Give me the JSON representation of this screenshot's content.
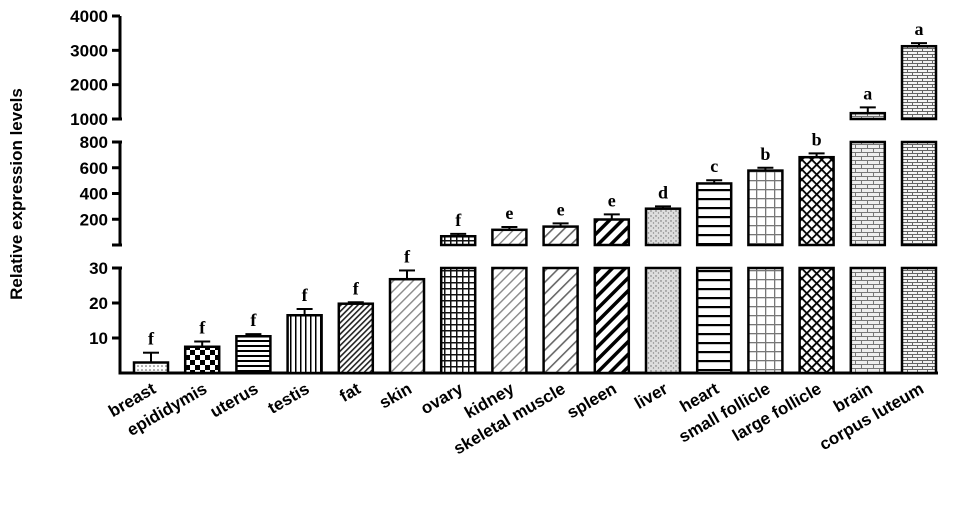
{
  "chart_data": {
    "type": "bar",
    "ylabel": "Relative expression levels",
    "categories": [
      "breast",
      "epididymis",
      "uterus",
      "testis",
      "fat",
      "skin",
      "ovary",
      "kidney",
      "skeletal muscle",
      "spleen",
      "liver",
      "heart",
      "small follicle",
      "large follicle",
      "brain",
      "corpus luteum"
    ],
    "values": [
      3,
      7.5,
      10.5,
      16.5,
      19.8,
      26.8,
      68,
      118,
      143,
      198,
      282,
      478,
      578,
      682,
      1170,
      3120
    ],
    "errors": [
      2.8,
      1.5,
      0.6,
      1.8,
      0.4,
      2.5,
      18,
      22,
      25,
      40,
      18,
      25,
      22,
      30,
      170,
      90
    ],
    "significance": [
      "f",
      "f",
      "f",
      "f",
      "f",
      "f",
      "f",
      "e",
      "e",
      "e",
      "d",
      "c",
      "b",
      "b",
      "a",
      "a"
    ],
    "patterns": [
      "dots",
      "checker",
      "hstripe",
      "vstripe",
      "diag-dense",
      "diag-light",
      "grid",
      "diag-light",
      "diag",
      "diag-bold",
      "speckle",
      "hstripe-wide",
      "grid-light",
      "crosshatch",
      "brick",
      "brick-fine"
    ],
    "y_segments": [
      {
        "range": [
          0,
          30
        ],
        "ticks": [
          "10",
          "20",
          "30"
        ],
        "tick_values": [
          10,
          20,
          30
        ]
      },
      {
        "range": [
          0,
          800
        ],
        "ticks": [
          "200",
          "400",
          "600",
          "800"
        ],
        "tick_values": [
          200,
          400,
          600,
          800
        ]
      },
      {
        "range": [
          1000,
          4000
        ],
        "ticks": [
          "1000",
          "2000",
          "3000",
          "4000"
        ],
        "tick_values": [
          1000,
          2000,
          3000,
          4000
        ]
      }
    ],
    "grid": false,
    "legend": "none"
  }
}
